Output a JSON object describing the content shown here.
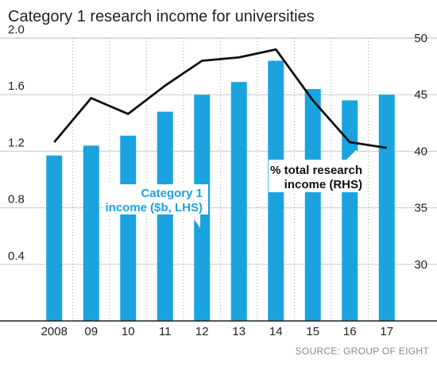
{
  "chart_data": {
    "type": "bar",
    "title": "Category 1 research income for universities",
    "source": "SOURCE: GROUP OF EIGHT",
    "categories": [
      "2008",
      "09",
      "10",
      "11",
      "12",
      "13",
      "14",
      "15",
      "16",
      "17"
    ],
    "series": [
      {
        "name": "Category 1 income ($b, LHS)",
        "type": "bar",
        "axis": "left",
        "color": "#1ba3e0",
        "values": [
          1.17,
          1.24,
          1.31,
          1.48,
          1.6,
          1.69,
          1.84,
          1.64,
          1.56,
          1.6
        ]
      },
      {
        "name": "% total research income (RHS)",
        "type": "line",
        "axis": "right",
        "color": "#111111",
        "values": [
          40.8,
          44.7,
          43.3,
          45.8,
          48.0,
          48.3,
          49.0,
          44.5,
          40.8,
          40.3
        ]
      }
    ],
    "y_left": {
      "ticks": [
        "0.4",
        "0.8",
        "1.2",
        "1.6",
        "2.0"
      ],
      "tick_values": [
        0.4,
        0.8,
        1.2,
        1.6,
        2.0
      ],
      "range": [
        0,
        2.0
      ]
    },
    "y_right": {
      "ticks": [
        "30",
        "35",
        "40",
        "45",
        "50"
      ],
      "tick_values": [
        30,
        35,
        40,
        45,
        50
      ],
      "range": [
        25,
        50
      ]
    },
    "annotations": {
      "lhs_line1": "Category 1",
      "lhs_line2": "income ($b, LHS)",
      "rhs_line1": "% total research",
      "rhs_line2": "income (RHS)"
    },
    "grid": true,
    "gridline_color": "#cccccc"
  }
}
